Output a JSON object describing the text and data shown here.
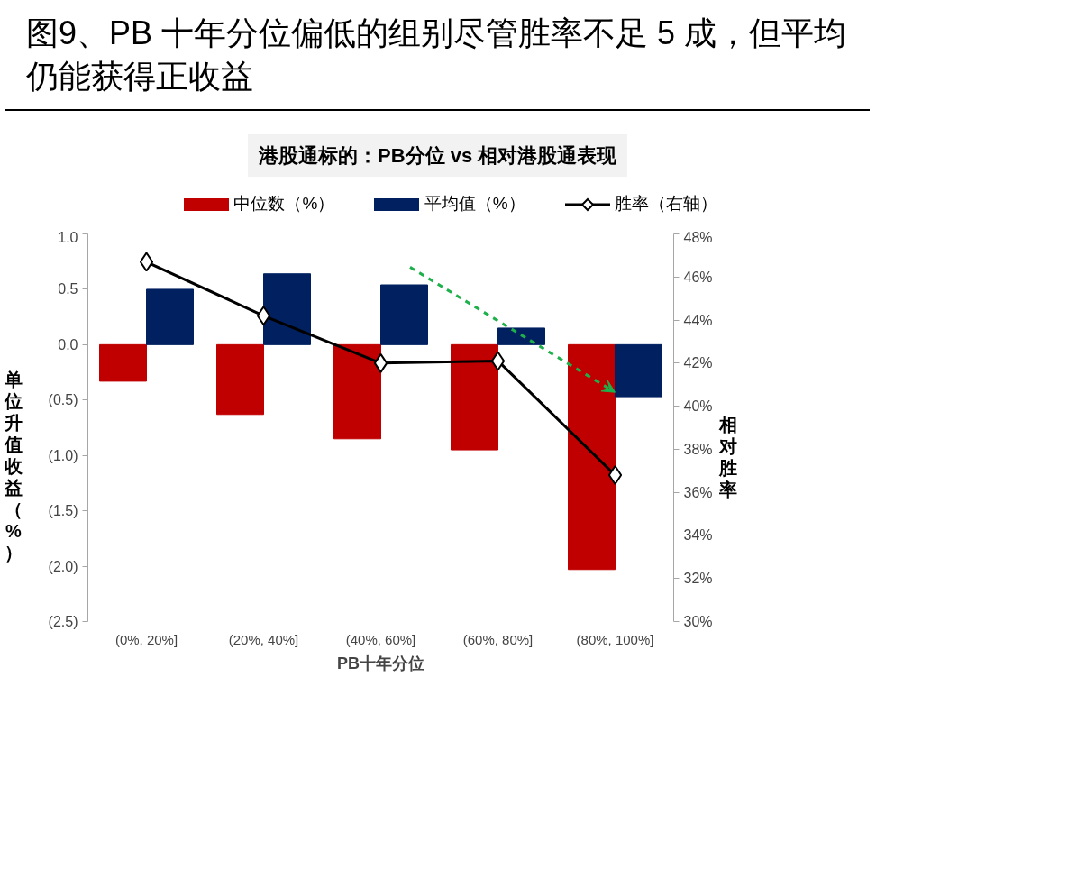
{
  "chart_data": {
    "type": "bar",
    "title": "图9、PB 十年分位偏低的组别尽管胜率不足 5 成，但平均仍能获得正收益",
    "subtitle": "港股通标的：PB分位 vs 相对港股通表现",
    "xlabel": "PB十年分位",
    "ylabel": "单位升值收益（%）",
    "y2label": "相对胜率",
    "categories": [
      "(0%, 20%]",
      "(20%, 40%]",
      "(40%, 60%]",
      "(60%, 80%]",
      "(80%, 100%]"
    ],
    "series": [
      {
        "name": "中位数（%）",
        "color": "#c00000",
        "values": [
          -0.33,
          -0.63,
          -0.85,
          -0.95,
          -2.03
        ]
      },
      {
        "name": "平均值（%）",
        "color": "#002060",
        "values": [
          0.5,
          0.64,
          0.54,
          0.15,
          -0.47
        ]
      },
      {
        "name": "胜率（右轴）",
        "type": "line",
        "axis": "y2",
        "color": "#000000",
        "marker": "diamond",
        "values": [
          46.7,
          44.2,
          42.0,
          42.1,
          36.8
        ]
      }
    ],
    "ylim": [
      -2.5,
      1.0
    ],
    "yticks": [
      {
        "value": 1.0,
        "label": "1.0"
      },
      {
        "value": 0.5,
        "label": "0.5"
      },
      {
        "value": 0.0,
        "label": "0.0"
      },
      {
        "value": -0.5,
        "label": "(0.5)"
      },
      {
        "value": -1.0,
        "label": "(1.0)"
      },
      {
        "value": -1.5,
        "label": "(1.5)"
      },
      {
        "value": -2.0,
        "label": "(2.0)"
      },
      {
        "value": -2.5,
        "label": "(2.5)"
      }
    ],
    "y2lim": [
      30,
      48
    ],
    "y2ticks": [
      {
        "value": 30,
        "label": "30%"
      },
      {
        "value": 32,
        "label": "32%"
      },
      {
        "value": 34,
        "label": "34%"
      },
      {
        "value": 36,
        "label": "36%"
      },
      {
        "value": 38,
        "label": "38%"
      },
      {
        "value": 40,
        "label": "40%"
      },
      {
        "value": 42,
        "label": "42%"
      },
      {
        "value": 44,
        "label": "44%"
      },
      {
        "value": 46,
        "label": "46%"
      },
      {
        "value": 48,
        "label": "48%"
      }
    ],
    "legend": "top",
    "grid": false
  }
}
